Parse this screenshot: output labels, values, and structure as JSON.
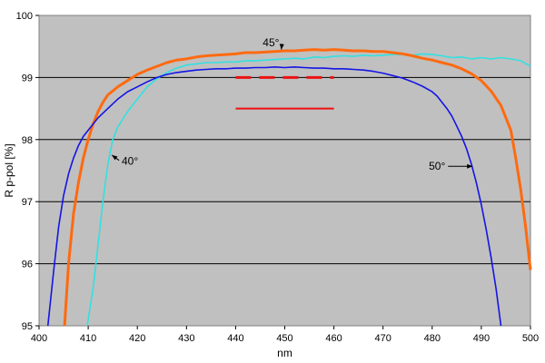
{
  "chart_data": {
    "type": "line",
    "title": "",
    "xlabel": "nm",
    "ylabel": "R p-pol [%]",
    "xlim": [
      400,
      500
    ],
    "ylim": [
      95,
      100
    ],
    "xticks": [
      "400",
      "410",
      "420",
      "430",
      "440",
      "450",
      "460",
      "470",
      "480",
      "490",
      "500"
    ],
    "yticks": [
      "95",
      "96",
      "97",
      "98",
      "99",
      "100"
    ],
    "grid": "horizontal",
    "plot_background": "#c0c0c0",
    "series": [
      {
        "name": "40°",
        "color": "#33e0e0",
        "x": [
          409.8,
          411,
          412,
          413,
          414,
          415,
          416,
          418,
          420,
          422,
          424,
          426,
          428,
          430,
          432,
          434,
          436,
          438,
          440,
          442,
          444,
          446,
          448,
          450,
          452,
          454,
          456,
          458,
          460,
          462,
          464,
          466,
          468,
          470,
          472,
          474,
          476,
          478,
          480,
          482,
          484,
          486,
          488,
          490,
          492,
          494,
          496,
          498,
          500
        ],
        "values": [
          95.0,
          95.6,
          96.3,
          97.0,
          97.6,
          98.0,
          98.2,
          98.45,
          98.65,
          98.85,
          98.98,
          99.08,
          99.15,
          99.2,
          99.22,
          99.24,
          99.24,
          99.25,
          99.25,
          99.27,
          99.27,
          99.28,
          99.29,
          99.3,
          99.31,
          99.3,
          99.33,
          99.32,
          99.34,
          99.35,
          99.34,
          99.36,
          99.35,
          99.36,
          99.37,
          99.37,
          99.36,
          99.38,
          99.37,
          99.35,
          99.32,
          99.33,
          99.3,
          99.32,
          99.3,
          99.32,
          99.3,
          99.27,
          99.18
        ]
      },
      {
        "name": "45°",
        "color": "#ff6a10",
        "x": [
          405.2,
          406,
          407,
          408,
          409,
          410,
          411,
          412,
          413,
          414,
          416,
          418,
          420,
          422,
          424,
          426,
          428,
          430,
          432,
          434,
          436,
          438,
          440,
          442,
          444,
          446,
          448,
          450,
          452,
          454,
          456,
          458,
          460,
          462,
          464,
          466,
          468,
          470,
          472,
          474,
          476,
          478,
          480,
          482,
          484,
          486,
          488,
          490,
          492,
          494,
          496,
          497,
          498,
          499,
          500
        ],
        "values": [
          95.0,
          96.0,
          96.8,
          97.3,
          97.7,
          98.0,
          98.25,
          98.45,
          98.6,
          98.72,
          98.85,
          98.95,
          99.05,
          99.12,
          99.18,
          99.24,
          99.28,
          99.3,
          99.33,
          99.35,
          99.36,
          99.37,
          99.38,
          99.4,
          99.4,
          99.41,
          99.42,
          99.43,
          99.43,
          99.44,
          99.45,
          99.44,
          99.45,
          99.44,
          99.43,
          99.43,
          99.42,
          99.42,
          99.4,
          99.38,
          99.35,
          99.31,
          99.28,
          99.24,
          99.2,
          99.14,
          99.06,
          98.95,
          98.78,
          98.55,
          98.15,
          97.7,
          97.2,
          96.6,
          95.9
        ]
      },
      {
        "name": "50°",
        "color": "#1414e6",
        "x": [
          401.8,
          403,
          404,
          405,
          406,
          407,
          408,
          409,
          410,
          412,
          414,
          416,
          418,
          420,
          422,
          424,
          426,
          428,
          430,
          432,
          434,
          436,
          438,
          440,
          442,
          444,
          446,
          448,
          450,
          452,
          454,
          456,
          458,
          460,
          462,
          464,
          466,
          468,
          470,
          472,
          474,
          476,
          478,
          480,
          481,
          482,
          483,
          484,
          485,
          486,
          487,
          488,
          489,
          490,
          491,
          492,
          493,
          494
        ],
        "values": [
          95.0,
          95.9,
          96.6,
          97.1,
          97.45,
          97.7,
          97.9,
          98.05,
          98.15,
          98.35,
          98.5,
          98.65,
          98.77,
          98.85,
          98.93,
          99.0,
          99.05,
          99.08,
          99.1,
          99.12,
          99.13,
          99.14,
          99.14,
          99.15,
          99.15,
          99.16,
          99.16,
          99.17,
          99.16,
          99.17,
          99.16,
          99.15,
          99.15,
          99.14,
          99.14,
          99.13,
          99.12,
          99.1,
          99.07,
          99.03,
          98.99,
          98.93,
          98.86,
          98.77,
          98.7,
          98.6,
          98.5,
          98.38,
          98.22,
          98.05,
          97.85,
          97.6,
          97.3,
          96.95,
          96.55,
          96.1,
          95.6,
          95.0
        ]
      }
    ],
    "reference_lines": [
      {
        "x": [
          440,
          460
        ],
        "y": 99.0,
        "color": "#ee1111",
        "style": "dashed"
      },
      {
        "x": [
          440,
          460
        ],
        "y": 98.5,
        "color": "#ee1111",
        "style": "solid"
      }
    ],
    "annotations": [
      {
        "text": "45°",
        "x": 447.2,
        "y": 99.56,
        "arrow_to": [
          449.3,
          99.45
        ]
      },
      {
        "text": "40°",
        "x": 418.5,
        "y": 97.65,
        "arrow_to": [
          414.8,
          97.75
        ]
      },
      {
        "text": "50°",
        "x": 481.0,
        "y": 97.57,
        "arrow_to": [
          488.2,
          97.57
        ]
      }
    ]
  }
}
